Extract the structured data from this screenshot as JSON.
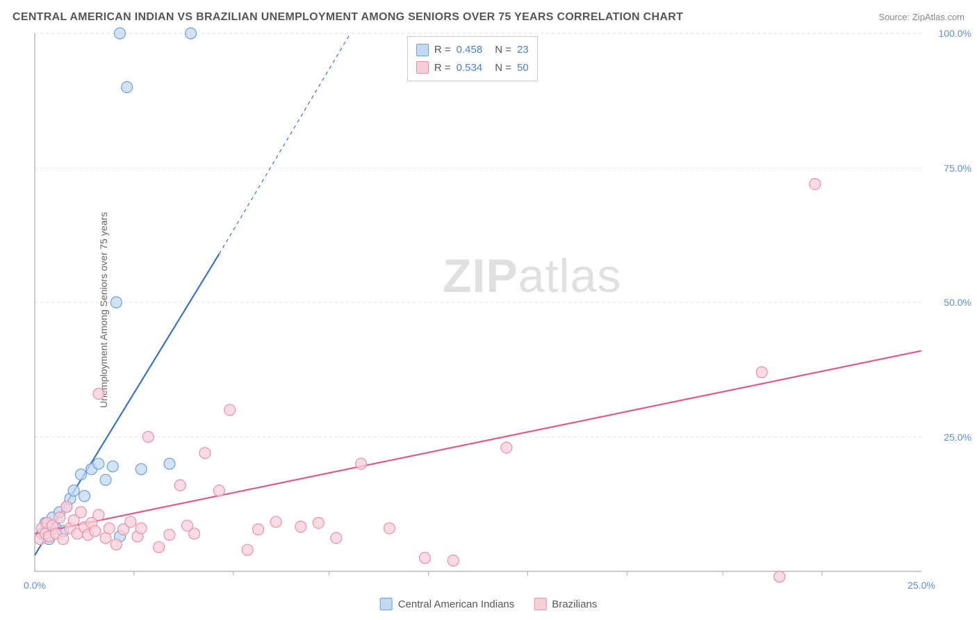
{
  "title": "CENTRAL AMERICAN INDIAN VS BRAZILIAN UNEMPLOYMENT AMONG SENIORS OVER 75 YEARS CORRELATION CHART",
  "source": "Source: ZipAtlas.com",
  "y_axis_label": "Unemployment Among Seniors over 75 years",
  "watermark_bold": "ZIP",
  "watermark_light": "atlas",
  "chart": {
    "type": "scatter",
    "background_color": "#ffffff",
    "grid_color": "#e4e4e4",
    "axis_line_color": "#aaaaaa",
    "tick_color": "#5b8fd6",
    "xlim": [
      0,
      25
    ],
    "ylim": [
      0,
      100
    ],
    "x_ticks": [
      0,
      25
    ],
    "x_minor_ticks": [
      2.8,
      5.6,
      8.3,
      11.1,
      13.9,
      16.7,
      19.4,
      22.2
    ],
    "y_ticks": [
      25,
      50,
      75,
      100
    ],
    "x_tick_labels": [
      "0.0%",
      "25.0%"
    ],
    "y_tick_labels": [
      "25.0%",
      "50.0%",
      "75.0%",
      "100.0%"
    ],
    "marker_radius": 8,
    "marker_stroke_width": 1.2,
    "line_width": 2.2,
    "series": [
      {
        "name": "Central American Indians",
        "key": "cai",
        "fill": "#c3d9f2",
        "stroke": "#6b9ed9",
        "line_color": "#3a72c4",
        "R": "0.458",
        "N": "23",
        "points": [
          [
            0.2,
            7
          ],
          [
            0.3,
            9
          ],
          [
            0.4,
            6
          ],
          [
            0.5,
            10
          ],
          [
            0.6,
            8
          ],
          [
            0.7,
            11
          ],
          [
            0.8,
            7.5
          ],
          [
            0.9,
            12
          ],
          [
            1.0,
            13.5
          ],
          [
            1.1,
            15
          ],
          [
            1.3,
            18
          ],
          [
            1.4,
            14
          ],
          [
            1.6,
            19
          ],
          [
            1.8,
            20
          ],
          [
            2.0,
            17
          ],
          [
            2.2,
            19.5
          ],
          [
            2.4,
            6.5
          ],
          [
            3.0,
            19
          ],
          [
            3.8,
            20
          ],
          [
            2.3,
            50
          ],
          [
            2.6,
            90
          ],
          [
            2.4,
            100
          ],
          [
            4.4,
            100
          ]
        ],
        "trend": {
          "x1": 0,
          "y1": 3,
          "x2": 5.2,
          "y2": 59
        },
        "trend_ext": {
          "x1": 5.2,
          "y1": 59,
          "x2": 8.9,
          "y2": 100
        }
      },
      {
        "name": "Brazilians",
        "key": "bra",
        "fill": "#f7cfd9",
        "stroke": "#e890a8",
        "line_color": "#e05a85",
        "R": "0.534",
        "N": "50",
        "points": [
          [
            0.15,
            6
          ],
          [
            0.2,
            8
          ],
          [
            0.3,
            7
          ],
          [
            0.35,
            9
          ],
          [
            0.4,
            6.5
          ],
          [
            0.5,
            8.5
          ],
          [
            0.6,
            7
          ],
          [
            0.7,
            10
          ],
          [
            0.8,
            6
          ],
          [
            0.9,
            12
          ],
          [
            1.0,
            8
          ],
          [
            1.1,
            9.5
          ],
          [
            1.2,
            7
          ],
          [
            1.3,
            11
          ],
          [
            1.4,
            8.2
          ],
          [
            1.5,
            6.8
          ],
          [
            1.6,
            9
          ],
          [
            1.7,
            7.5
          ],
          [
            1.8,
            10.5
          ],
          [
            2.0,
            6.2
          ],
          [
            2.1,
            8
          ],
          [
            2.3,
            5
          ],
          [
            2.5,
            7.8
          ],
          [
            2.7,
            9.2
          ],
          [
            2.9,
            6.5
          ],
          [
            3.0,
            8
          ],
          [
            3.2,
            25
          ],
          [
            3.5,
            4.5
          ],
          [
            3.8,
            6.8
          ],
          [
            4.1,
            16
          ],
          [
            4.3,
            8.5
          ],
          [
            4.5,
            7
          ],
          [
            4.8,
            22
          ],
          [
            5.2,
            15
          ],
          [
            1.8,
            33
          ],
          [
            5.5,
            30
          ],
          [
            6.0,
            4
          ],
          [
            6.3,
            7.8
          ],
          [
            6.8,
            9.2
          ],
          [
            7.5,
            8.3
          ],
          [
            8.0,
            9
          ],
          [
            8.5,
            6.2
          ],
          [
            9.2,
            20
          ],
          [
            10.0,
            8
          ],
          [
            11.0,
            2.5
          ],
          [
            11.8,
            2
          ],
          [
            13.3,
            23
          ],
          [
            20.5,
            37
          ],
          [
            22.0,
            72
          ],
          [
            21.0,
            -1
          ]
        ],
        "trend": {
          "x1": 0,
          "y1": 7,
          "x2": 25,
          "y2": 41
        }
      }
    ]
  },
  "legend_bottom": [
    {
      "label": "Central American Indians",
      "fill": "#c3d9f2",
      "stroke": "#6b9ed9"
    },
    {
      "label": "Brazilians",
      "fill": "#f7cfd9",
      "stroke": "#e890a8"
    }
  ]
}
